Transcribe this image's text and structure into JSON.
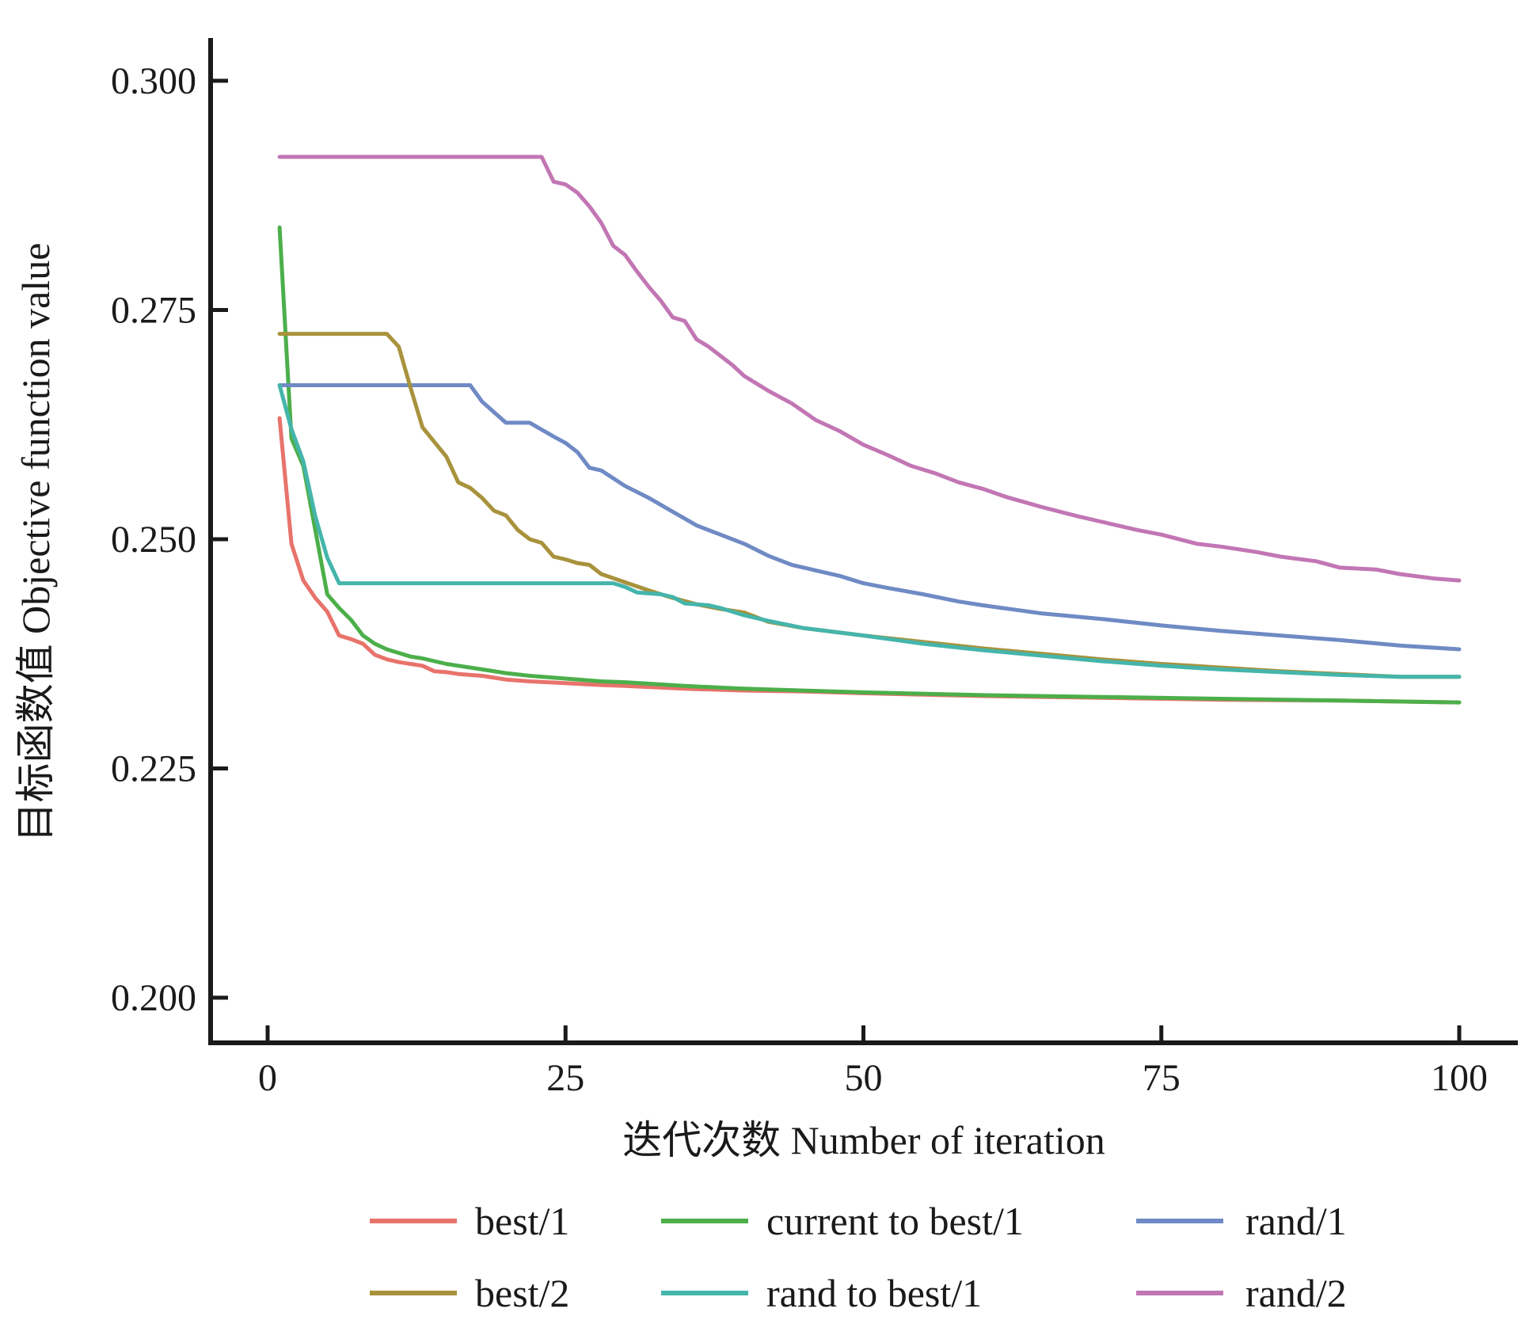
{
  "chart_data": {
    "type": "line",
    "xlabel": "迭代次数  Number of iteration",
    "ylabel": "目标函数值  Objective function value",
    "xlim": [
      -5,
      103
    ],
    "ylim": [
      0.195,
      0.3045
    ],
    "x_ticks": [
      0,
      25,
      50,
      75,
      100
    ],
    "x_tick_labels": [
      "0",
      "25",
      "50",
      "75",
      "100"
    ],
    "y_ticks": [
      0.2,
      0.225,
      0.25,
      0.275,
      0.3
    ],
    "y_tick_labels": [
      "0.200",
      "0.225",
      "0.250",
      "0.275",
      "0.300"
    ],
    "grid": false,
    "legend_position": "bottom",
    "series": [
      {
        "name": "best/1",
        "color": "#e8736b",
        "points": [
          [
            1,
            0.2632
          ],
          [
            2,
            0.2495
          ],
          [
            3,
            0.2455
          ],
          [
            4,
            0.2436
          ],
          [
            5,
            0.2421
          ],
          [
            6,
            0.2395
          ],
          [
            7,
            0.2391
          ],
          [
            8,
            0.2386
          ],
          [
            9,
            0.2374
          ],
          [
            10,
            0.2369
          ],
          [
            11,
            0.2366
          ],
          [
            12,
            0.2364
          ],
          [
            13,
            0.2362
          ],
          [
            14,
            0.2356
          ],
          [
            15,
            0.2355
          ],
          [
            16,
            0.2353
          ],
          [
            17,
            0.2352
          ],
          [
            18,
            0.2351
          ],
          [
            19,
            0.2349
          ],
          [
            20,
            0.2347
          ],
          [
            22,
            0.2345
          ],
          [
            25,
            0.2343
          ],
          [
            28,
            0.2341
          ],
          [
            30,
            0.234
          ],
          [
            35,
            0.2337
          ],
          [
            40,
            0.2335
          ],
          [
            45,
            0.2334
          ],
          [
            50,
            0.2332
          ],
          [
            60,
            0.2329
          ],
          [
            70,
            0.2327
          ],
          [
            80,
            0.2325
          ],
          [
            90,
            0.2324
          ],
          [
            100,
            0.2322
          ]
        ]
      },
      {
        "name": "current to best/1",
        "color": "#4caf4a",
        "points": [
          [
            1,
            0.284
          ],
          [
            2,
            0.261
          ],
          [
            3,
            0.258
          ],
          [
            4,
            0.251
          ],
          [
            5,
            0.244
          ],
          [
            6,
            0.2425
          ],
          [
            7,
            0.2412
          ],
          [
            8,
            0.2395
          ],
          [
            9,
            0.2386
          ],
          [
            10,
            0.238
          ],
          [
            11,
            0.2376
          ],
          [
            12,
            0.2372
          ],
          [
            13,
            0.237
          ],
          [
            14,
            0.2367
          ],
          [
            15,
            0.2364
          ],
          [
            16,
            0.2362
          ],
          [
            18,
            0.2358
          ],
          [
            20,
            0.2354
          ],
          [
            22,
            0.2351
          ],
          [
            25,
            0.2348
          ],
          [
            28,
            0.2345
          ],
          [
            30,
            0.2344
          ],
          [
            35,
            0.234
          ],
          [
            40,
            0.2337
          ],
          [
            45,
            0.2335
          ],
          [
            50,
            0.2333
          ],
          [
            60,
            0.233
          ],
          [
            70,
            0.2328
          ],
          [
            80,
            0.2326
          ],
          [
            90,
            0.2324
          ],
          [
            100,
            0.2322
          ]
        ]
      },
      {
        "name": "rand/1",
        "color": "#6f8ac4",
        "points": [
          [
            1,
            0.2668
          ],
          [
            17,
            0.2668
          ],
          [
            18,
            0.265
          ],
          [
            20,
            0.2627
          ],
          [
            22,
            0.2627
          ],
          [
            24,
            0.2612
          ],
          [
            25,
            0.2605
          ],
          [
            26,
            0.2595
          ],
          [
            27,
            0.2578
          ],
          [
            28,
            0.2575
          ],
          [
            30,
            0.2558
          ],
          [
            32,
            0.2545
          ],
          [
            34,
            0.253
          ],
          [
            36,
            0.2515
          ],
          [
            38,
            0.2505
          ],
          [
            40,
            0.2495
          ],
          [
            42,
            0.2482
          ],
          [
            44,
            0.2472
          ],
          [
            46,
            0.2466
          ],
          [
            48,
            0.246
          ],
          [
            50,
            0.2452
          ],
          [
            52,
            0.2447
          ],
          [
            55,
            0.244
          ],
          [
            58,
            0.2432
          ],
          [
            60,
            0.2428
          ],
          [
            65,
            0.2419
          ],
          [
            70,
            0.2413
          ],
          [
            75,
            0.2406
          ],
          [
            80,
            0.24
          ],
          [
            85,
            0.2395
          ],
          [
            90,
            0.239
          ],
          [
            95,
            0.2384
          ],
          [
            100,
            0.238
          ]
        ]
      },
      {
        "name": "best/2",
        "color": "#a8923c",
        "points": [
          [
            1,
            0.2724
          ],
          [
            10,
            0.2724
          ],
          [
            11,
            0.271
          ],
          [
            12,
            0.2665
          ],
          [
            13,
            0.2622
          ],
          [
            15,
            0.259
          ],
          [
            16,
            0.2562
          ],
          [
            17,
            0.2556
          ],
          [
            18,
            0.2545
          ],
          [
            19,
            0.2531
          ],
          [
            20,
            0.2526
          ],
          [
            21,
            0.251
          ],
          [
            22,
            0.25
          ],
          [
            23,
            0.2496
          ],
          [
            24,
            0.2481
          ],
          [
            25,
            0.2478
          ],
          [
            26,
            0.2474
          ],
          [
            27,
            0.2472
          ],
          [
            28,
            0.2462
          ],
          [
            30,
            0.2453
          ],
          [
            32,
            0.2444
          ],
          [
            34,
            0.2436
          ],
          [
            36,
            0.2429
          ],
          [
            38,
            0.2424
          ],
          [
            40,
            0.242
          ],
          [
            42,
            0.241
          ],
          [
            45,
            0.2403
          ],
          [
            50,
            0.2395
          ],
          [
            55,
            0.2388
          ],
          [
            60,
            0.2381
          ],
          [
            65,
            0.2375
          ],
          [
            70,
            0.2369
          ],
          [
            75,
            0.2364
          ],
          [
            80,
            0.236
          ],
          [
            85,
            0.2356
          ],
          [
            90,
            0.2353
          ],
          [
            95,
            0.235
          ],
          [
            100,
            0.235
          ]
        ]
      },
      {
        "name": "rand to best/1",
        "color": "#45b5ab",
        "points": [
          [
            1,
            0.2668
          ],
          [
            2,
            0.262
          ],
          [
            3,
            0.2585
          ],
          [
            4,
            0.2525
          ],
          [
            5,
            0.248
          ],
          [
            6,
            0.2452
          ],
          [
            29,
            0.2452
          ],
          [
            30,
            0.2448
          ],
          [
            31,
            0.2442
          ],
          [
            33,
            0.244
          ],
          [
            34,
            0.2437
          ],
          [
            35,
            0.243
          ],
          [
            37,
            0.2428
          ],
          [
            38,
            0.2425
          ],
          [
            40,
            0.2417
          ],
          [
            42,
            0.2411
          ],
          [
            45,
            0.2403
          ],
          [
            50,
            0.2395
          ],
          [
            55,
            0.2386
          ],
          [
            60,
            0.2379
          ],
          [
            65,
            0.2373
          ],
          [
            70,
            0.2367
          ],
          [
            75,
            0.2362
          ],
          [
            80,
            0.2358
          ],
          [
            85,
            0.2355
          ],
          [
            90,
            0.2352
          ],
          [
            95,
            0.235
          ],
          [
            100,
            0.235
          ]
        ]
      },
      {
        "name": "rand/2",
        "color": "#c276b4",
        "points": [
          [
            1,
            0.2917
          ],
          [
            23,
            0.2917
          ],
          [
            24,
            0.289
          ],
          [
            25,
            0.2887
          ],
          [
            26,
            0.2878
          ],
          [
            27,
            0.2863
          ],
          [
            28,
            0.2845
          ],
          [
            29,
            0.282
          ],
          [
            30,
            0.281
          ],
          [
            31,
            0.2792
          ],
          [
            32,
            0.2775
          ],
          [
            33,
            0.276
          ],
          [
            34,
            0.2742
          ],
          [
            35,
            0.2738
          ],
          [
            36,
            0.2718
          ],
          [
            37,
            0.271
          ],
          [
            38,
            0.27
          ],
          [
            39,
            0.269
          ],
          [
            40,
            0.2678
          ],
          [
            42,
            0.2662
          ],
          [
            44,
            0.2648
          ],
          [
            46,
            0.263
          ],
          [
            48,
            0.2618
          ],
          [
            50,
            0.2603
          ],
          [
            52,
            0.2592
          ],
          [
            54,
            0.258
          ],
          [
            56,
            0.2572
          ],
          [
            58,
            0.2562
          ],
          [
            60,
            0.2555
          ],
          [
            62,
            0.2546
          ],
          [
            65,
            0.2535
          ],
          [
            68,
            0.2525
          ],
          [
            70,
            0.2519
          ],
          [
            73,
            0.251
          ],
          [
            75,
            0.2505
          ],
          [
            78,
            0.2495
          ],
          [
            80,
            0.2492
          ],
          [
            83,
            0.2486
          ],
          [
            85,
            0.2481
          ],
          [
            88,
            0.2476
          ],
          [
            90,
            0.2469
          ],
          [
            93,
            0.2467
          ],
          [
            95,
            0.2462
          ],
          [
            98,
            0.2457
          ],
          [
            100,
            0.2455
          ]
        ]
      }
    ]
  }
}
